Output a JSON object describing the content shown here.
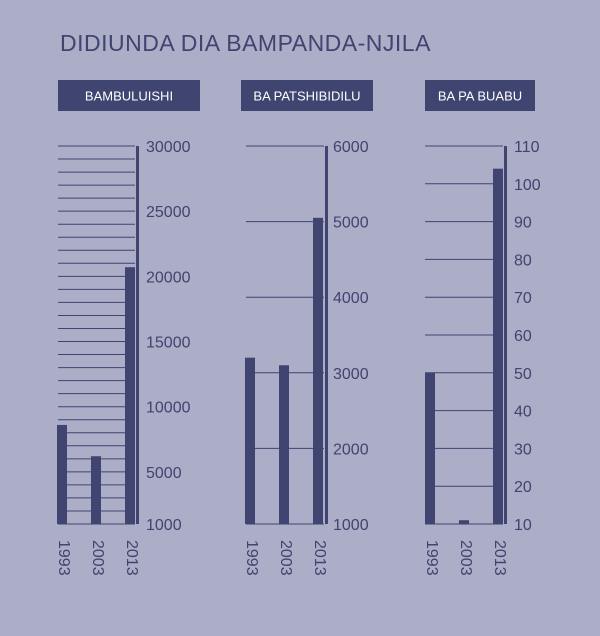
{
  "title": "DIDIUNDA DIA BAMPANDA-NJILA",
  "colors": {
    "background": "#acadc7",
    "bar": "#3f4470",
    "text": "#3f4470",
    "header_text": "#ffffff"
  },
  "chart_data": [
    {
      "type": "bar",
      "title": "BAMBULUISHI",
      "categories": [
        "1993",
        "2003",
        "2013"
      ],
      "values": [
        8600,
        6200,
        20700
      ],
      "ylim": [
        1000,
        30000
      ],
      "ticks": [
        {
          "value": 1000,
          "label": "1000"
        },
        {
          "value": 5000,
          "label": "5000"
        },
        {
          "value": 10000,
          "label": "10000"
        },
        {
          "value": 15000,
          "label": "15000"
        },
        {
          "value": 20000,
          "label": "20000"
        },
        {
          "value": 25000,
          "label": "25000"
        },
        {
          "value": 30000,
          "label": "30000"
        }
      ],
      "grid_step": 1000
    },
    {
      "type": "bar",
      "title": "BA PATSHIBIDILU",
      "categories": [
        "1993",
        "2003",
        "2013"
      ],
      "values": [
        3200,
        3100,
        5050
      ],
      "ylim": [
        1000,
        6000
      ],
      "ticks": [
        {
          "value": 1000,
          "label": "1000"
        },
        {
          "value": 2000,
          "label": "2000"
        },
        {
          "value": 3000,
          "label": "3000"
        },
        {
          "value": 4000,
          "label": "4000"
        },
        {
          "value": 5000,
          "label": "5000"
        },
        {
          "value": 6000,
          "label": "6000"
        }
      ],
      "grid_step": 1000
    },
    {
      "type": "bar",
      "title": "BA PA BUABU",
      "categories": [
        "1993",
        "2003",
        "2013"
      ],
      "values": [
        50,
        11,
        104
      ],
      "ylim": [
        10,
        110
      ],
      "ticks": [
        {
          "value": 10,
          "label": "10"
        },
        {
          "value": 20,
          "label": "20"
        },
        {
          "value": 30,
          "label": "30"
        },
        {
          "value": 40,
          "label": "40"
        },
        {
          "value": 50,
          "label": "50"
        },
        {
          "value": 60,
          "label": "60"
        },
        {
          "value": 70,
          "label": "70"
        },
        {
          "value": 80,
          "label": "80"
        },
        {
          "value": 90,
          "label": "90"
        },
        {
          "value": 100,
          "label": "100"
        },
        {
          "value": 110,
          "label": "110"
        }
      ],
      "grid_step": 10
    }
  ]
}
